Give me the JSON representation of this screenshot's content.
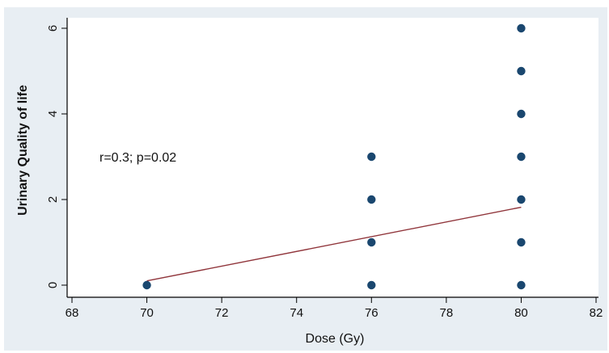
{
  "chart_data": {
    "type": "scatter",
    "title": "",
    "xlabel": "Dose (Gy)",
    "ylabel": "Urinary Quality of life",
    "xlim": [
      68,
      82
    ],
    "ylim": [
      0,
      6
    ],
    "xticks": [
      "68",
      "70",
      "72",
      "74",
      "76",
      "78",
      "80",
      "82"
    ],
    "yticks": [
      "0",
      "2",
      "4",
      "6"
    ],
    "grid": false,
    "legend": "none",
    "annotation": "r=0.3; p=0.02",
    "series": [
      {
        "points": [
          {
            "x": 70,
            "y": 0
          },
          {
            "x": 76,
            "y": 0
          },
          {
            "x": 76,
            "y": 1
          },
          {
            "x": 76,
            "y": 2
          },
          {
            "x": 76,
            "y": 3
          },
          {
            "x": 80,
            "y": 0
          },
          {
            "x": 80,
            "y": 1
          },
          {
            "x": 80,
            "y": 2
          },
          {
            "x": 80,
            "y": 3
          },
          {
            "x": 80,
            "y": 4
          },
          {
            "x": 80,
            "y": 5
          },
          {
            "x": 80,
            "y": 6
          }
        ]
      }
    ],
    "fit_line": {
      "x": [
        70,
        80
      ],
      "y": [
        0.1,
        1.82
      ]
    },
    "colors": {
      "background": "#e8eef3",
      "plot_area": "#ffffff",
      "marker": "#1a476f",
      "fit_line": "#90353b",
      "axis": "#000000"
    }
  }
}
